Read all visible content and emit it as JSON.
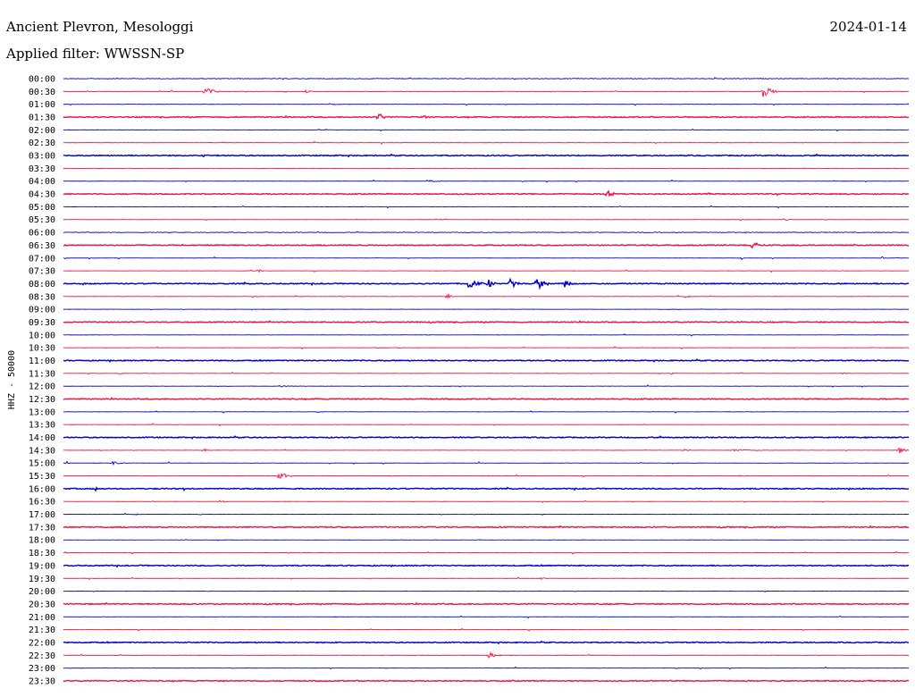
{
  "header": {
    "station": "Ancient Plevron, Mesologgi",
    "date": "2024-01-14",
    "filter": "Applied filter: WWSSN-SP"
  },
  "chart_data": {
    "type": "line",
    "title": "Ancient Plevron, Mesologgi",
    "ylabel": "HHZ - 50000",
    "colors": [
      "#0000cc",
      "#ee1144"
    ],
    "rows": [
      {
        "time": "00:00",
        "noise": 0.6,
        "events": []
      },
      {
        "time": "00:30",
        "noise": 0.3,
        "events": [
          {
            "x": 0.165,
            "amp": 7,
            "dur": 0.02
          },
          {
            "x": 0.286,
            "amp": 2,
            "dur": 0.012
          },
          {
            "x": 0.827,
            "amp": 8,
            "dur": 0.02
          }
        ]
      },
      {
        "time": "01:00",
        "noise": 0.2,
        "events": [
          {
            "x": 0.315,
            "amp": 1.5,
            "dur": 0.015
          }
        ]
      },
      {
        "time": "01:30",
        "noise": 0.9,
        "events": [
          {
            "x": 0.373,
            "amp": 5,
            "dur": 0.01
          },
          {
            "x": 0.423,
            "amp": 2.5,
            "dur": 0.012
          }
        ]
      },
      {
        "time": "02:00",
        "noise": 0.2,
        "events": [
          {
            "x": 0.31,
            "amp": 1,
            "dur": 0.01
          }
        ]
      },
      {
        "time": "02:30",
        "noise": 0.2,
        "events": []
      },
      {
        "time": "03:00",
        "noise": 0.9,
        "events": [
          {
            "x": 0.164,
            "amp": 3,
            "dur": 0.012
          }
        ]
      },
      {
        "time": "03:30",
        "noise": 0.2,
        "events": [
          {
            "x": 0.37,
            "amp": 1,
            "dur": 0.005
          }
        ]
      },
      {
        "time": "04:00",
        "noise": 0.2,
        "events": [
          {
            "x": 0.43,
            "amp": 1.5,
            "dur": 0.025
          }
        ]
      },
      {
        "time": "04:30",
        "noise": 0.9,
        "events": [
          {
            "x": 0.642,
            "amp": 5,
            "dur": 0.012
          }
        ]
      },
      {
        "time": "05:00",
        "noise": 0.2,
        "events": []
      },
      {
        "time": "05:30",
        "noise": 0.2,
        "events": [
          {
            "x": 0.44,
            "amp": 1,
            "dur": 0.02
          },
          {
            "x": 0.855,
            "amp": 1,
            "dur": 0.01
          }
        ]
      },
      {
        "time": "06:00",
        "noise": 0.6,
        "events": []
      },
      {
        "time": "06:30",
        "noise": 0.9,
        "events": [
          {
            "x": 0.139,
            "amp": 3,
            "dur": 0.005
          },
          {
            "x": 0.813,
            "amp": 3.5,
            "dur": 0.02
          }
        ]
      },
      {
        "time": "07:00",
        "noise": 0.2,
        "events": [
          {
            "x": 0.802,
            "amp": 2,
            "dur": 0.003
          },
          {
            "x": 0.968,
            "amp": 1.5,
            "dur": 0.01
          }
        ]
      },
      {
        "time": "07:30",
        "noise": 0.2,
        "events": [
          {
            "x": 0.231,
            "amp": 4,
            "dur": 0.005
          }
        ]
      },
      {
        "time": "08:00",
        "noise": 0.9,
        "events": [
          {
            "x": 0.023,
            "amp": 2,
            "dur": 0.005
          },
          {
            "x": 0.478,
            "amp": 6,
            "dur": 0.02
          },
          {
            "x": 0.503,
            "amp": 6,
            "dur": 0.01
          },
          {
            "x": 0.528,
            "amp": 8,
            "dur": 0.012
          },
          {
            "x": 0.56,
            "amp": 9,
            "dur": 0.015
          },
          {
            "x": 0.592,
            "amp": 6,
            "dur": 0.012
          }
        ]
      },
      {
        "time": "08:30",
        "noise": 0.2,
        "events": [
          {
            "x": 0.453,
            "amp": 5,
            "dur": 0.008
          },
          {
            "x": 0.735,
            "amp": 1.5,
            "dur": 0.015
          }
        ]
      },
      {
        "time": "09:00",
        "noise": 0.2,
        "events": []
      },
      {
        "time": "09:30",
        "noise": 0.9,
        "events": []
      },
      {
        "time": "10:00",
        "noise": 0.2,
        "events": []
      },
      {
        "time": "10:30",
        "noise": 0.2,
        "events": [
          {
            "x": 0.37,
            "amp": 1,
            "dur": 0.01
          },
          {
            "x": 0.395,
            "amp": 1,
            "dur": 0.01
          }
        ]
      },
      {
        "time": "11:00",
        "noise": 0.9,
        "events": []
      },
      {
        "time": "11:30",
        "noise": 0.2,
        "events": [
          {
            "x": 0.066,
            "amp": 2,
            "dur": 0.008
          },
          {
            "x": 0.718,
            "amp": 1.5,
            "dur": 0.012
          },
          {
            "x": 0.92,
            "amp": 1.5,
            "dur": 0.012
          }
        ]
      },
      {
        "time": "12:00",
        "noise": 0.2,
        "events": [
          {
            "x": 0.255,
            "amp": 1,
            "dur": 0.04
          }
        ]
      },
      {
        "time": "12:30",
        "noise": 0.9,
        "events": []
      },
      {
        "time": "13:00",
        "noise": 0.2,
        "events": [
          {
            "x": 0.301,
            "amp": 1,
            "dur": 0.008
          }
        ]
      },
      {
        "time": "13:30",
        "noise": 0.2,
        "events": []
      },
      {
        "time": "14:00",
        "noise": 0.9,
        "events": []
      },
      {
        "time": "14:30",
        "noise": 0.2,
        "events": [
          {
            "x": 0.167,
            "amp": 1.5,
            "dur": 0.01
          },
          {
            "x": 0.733,
            "amp": 2,
            "dur": 0.01
          },
          {
            "x": 0.79,
            "amp": 1.5,
            "dur": 0.05
          },
          {
            "x": 0.988,
            "amp": 4,
            "dur": 0.015
          }
        ]
      },
      {
        "time": "15:00",
        "noise": 0.2,
        "events": [
          {
            "x": 0.004,
            "amp": 2,
            "dur": 0.005
          },
          {
            "x": 0.058,
            "amp": 2,
            "dur": 0.02
          }
        ]
      },
      {
        "time": "15:30",
        "noise": 0.2,
        "events": [
          {
            "x": 0.255,
            "amp": 8,
            "dur": 0.015
          },
          {
            "x": 0.798,
            "amp": 1,
            "dur": 0.015
          }
        ]
      },
      {
        "time": "16:00",
        "noise": 0.9,
        "events": [
          {
            "x": 0.038,
            "amp": 3,
            "dur": 0.005
          }
        ]
      },
      {
        "time": "16:30",
        "noise": 0.2,
        "events": [
          {
            "x": 0.185,
            "amp": 4,
            "dur": 0.008
          }
        ]
      },
      {
        "time": "17:00",
        "noise": 0.2,
        "events": [
          {
            "x": 0.084,
            "amp": 1,
            "dur": 0.012
          },
          {
            "x": 0.16,
            "amp": 1,
            "dur": 0.01
          }
        ]
      },
      {
        "time": "17:30",
        "noise": 0.9,
        "events": []
      },
      {
        "time": "18:00",
        "noise": 0.2,
        "events": [
          {
            "x": 0.491,
            "amp": 2,
            "dur": 0.005
          }
        ]
      },
      {
        "time": "18:30",
        "noise": 0.2,
        "events": [
          {
            "x": 0.263,
            "amp": 1,
            "dur": 0.035
          }
        ]
      },
      {
        "time": "19:00",
        "noise": 0.9,
        "events": []
      },
      {
        "time": "19:30",
        "noise": 0.2,
        "events": [
          {
            "x": 0.565,
            "amp": 1.5,
            "dur": 0.012
          }
        ]
      },
      {
        "time": "20:00",
        "noise": 0.2,
        "events": [
          {
            "x": 0.173,
            "amp": 1,
            "dur": 0.004
          },
          {
            "x": 0.605,
            "amp": 1,
            "dur": 0.004
          }
        ]
      },
      {
        "time": "20:30",
        "noise": 0.9,
        "events": []
      },
      {
        "time": "21:00",
        "noise": 0.2,
        "events": []
      },
      {
        "time": "21:30",
        "noise": 0.2,
        "events": []
      },
      {
        "time": "22:00",
        "noise": 0.9,
        "events": [
          {
            "x": 0.322,
            "amp": 1.5,
            "dur": 0.004
          }
        ]
      },
      {
        "time": "22:30",
        "noise": 0.2,
        "events": [
          {
            "x": 0.503,
            "amp": 5,
            "dur": 0.015
          }
        ]
      },
      {
        "time": "23:00",
        "noise": 0.2,
        "events": [
          {
            "x": 0.376,
            "amp": 1,
            "dur": 0.003
          }
        ]
      },
      {
        "time": "23:30",
        "noise": 0.9,
        "events": []
      }
    ]
  }
}
